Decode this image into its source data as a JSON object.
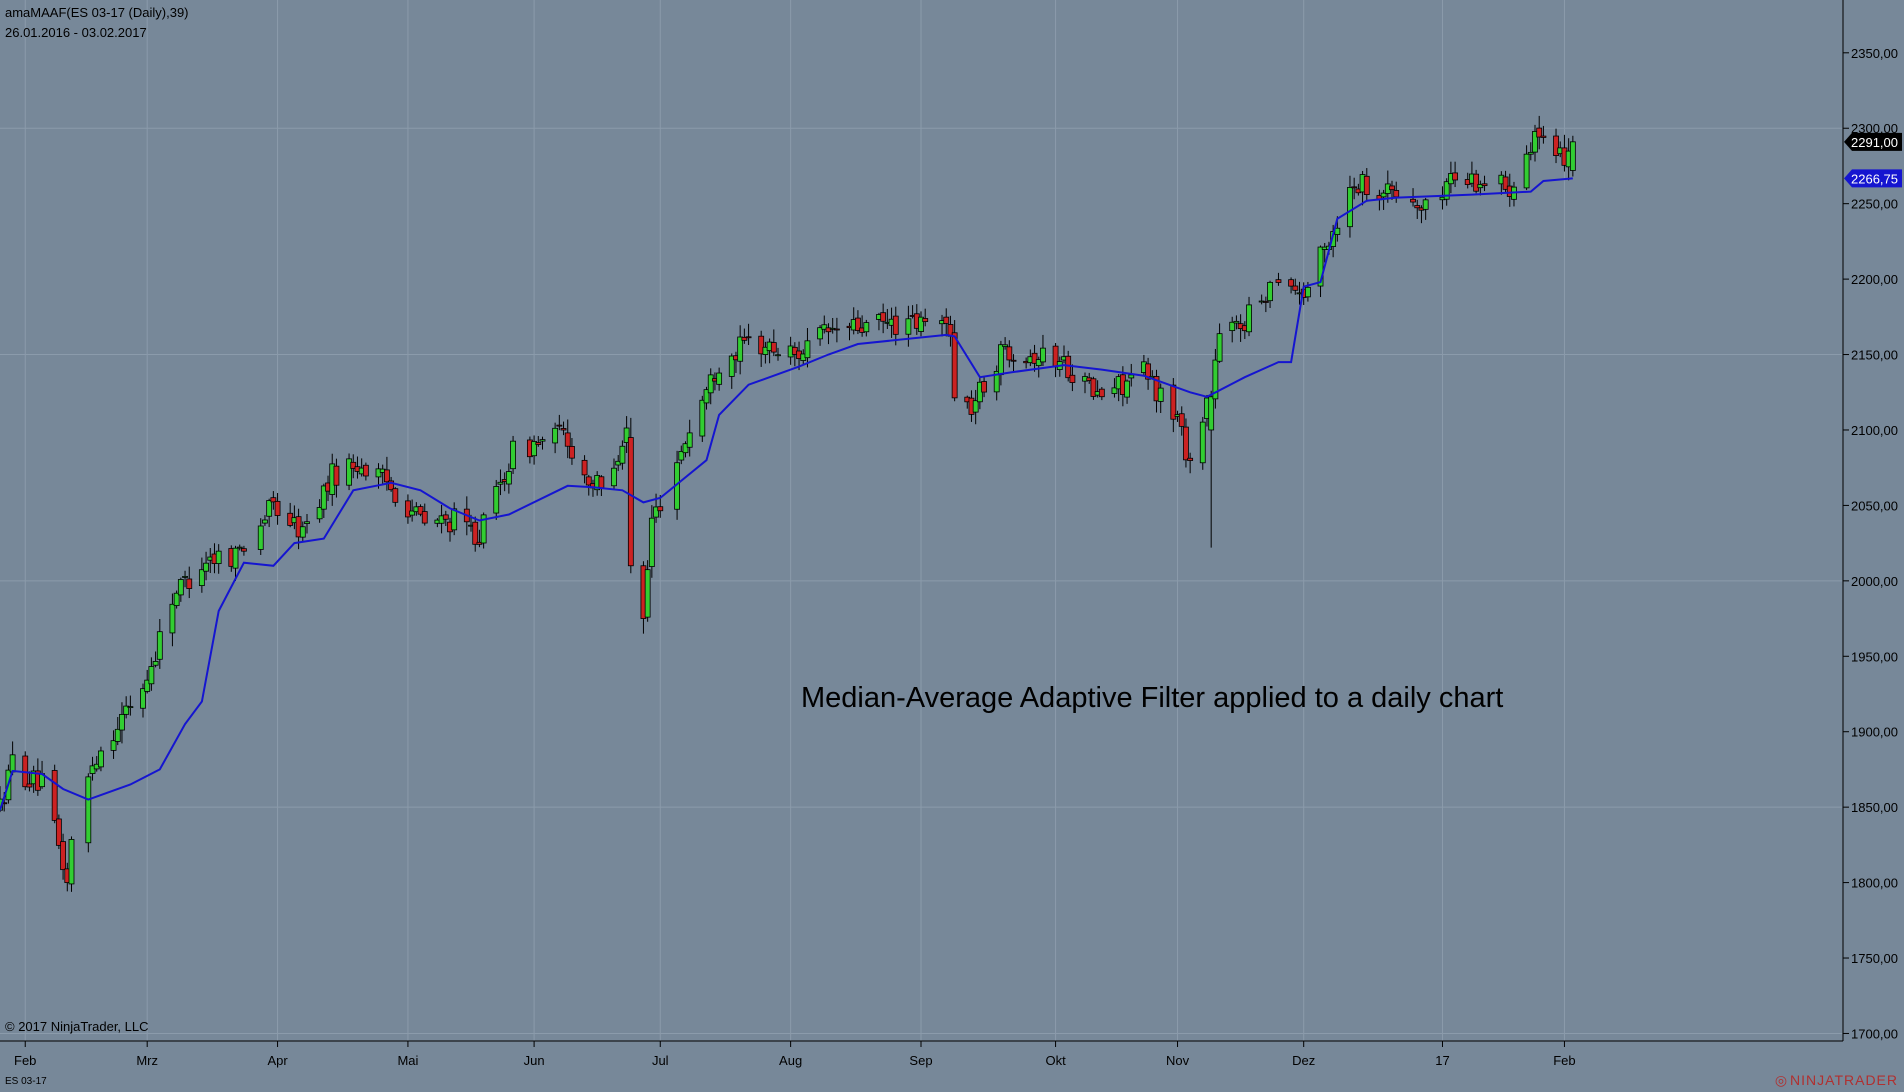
{
  "header": {
    "title": "amaMAAF(ES 03-17 (Daily),39)",
    "date_range": "26.01.2016 - 03.02.2017"
  },
  "copyright": "© 2017 NinjaTrader, LLC",
  "annotation": "Median-Average Adaptive Filter applied to a daily chart",
  "instrument_tab": "ES 03-17",
  "brand": {
    "mark": "◎",
    "name": "NINJATRADER"
  },
  "colors": {
    "background": "#778899",
    "grid": "#8b9bab",
    "up_candle": "#32cd32",
    "down_candle": "#cc2222",
    "wick": "#000000",
    "filter_line": "#1515d0",
    "last_price_tag": "#000000",
    "filter_tag": "#1515d0",
    "tag_text": "#ffffff"
  },
  "chart_data": {
    "type": "candlestick",
    "instrument": "ES 03-17 (Daily)",
    "y_axis": {
      "ylim": [
        1695,
        2385
      ],
      "ticks": [
        1700,
        1750,
        1800,
        1850,
        1900,
        1950,
        2000,
        2050,
        2100,
        2150,
        2200,
        2250,
        2300,
        2350
      ],
      "tick_labels": [
        "1700,00",
        "1750,00",
        "1800,00",
        "1850,00",
        "1900,00",
        "1950,00",
        "2000,00",
        "2050,00",
        "2100,00",
        "2150,00",
        "2200,00",
        "2250,00",
        "2300,00",
        "2350,00"
      ],
      "position": "right"
    },
    "x_axis": {
      "xlim": [
        "2016-01-26",
        "2017-04-08"
      ],
      "months": [
        {
          "label": "Feb",
          "date": "2016-02-01"
        },
        {
          "label": "Mrz",
          "date": "2016-03-01"
        },
        {
          "label": "Apr",
          "date": "2016-04-01"
        },
        {
          "label": "Mai",
          "date": "2016-05-02"
        },
        {
          "label": "Jun",
          "date": "2016-06-01"
        },
        {
          "label": "Jul",
          "date": "2016-07-01"
        },
        {
          "label": "Aug",
          "date": "2016-08-01"
        },
        {
          "label": "Sep",
          "date": "2016-09-01"
        },
        {
          "label": "Okt",
          "date": "2016-10-03"
        },
        {
          "label": "Nov",
          "date": "2016-11-01"
        },
        {
          "label": "Dez",
          "date": "2016-12-01"
        },
        {
          "label": "17",
          "date": "2017-01-03"
        },
        {
          "label": "Feb",
          "date": "2017-02-01"
        }
      ]
    },
    "grid": {
      "horizontal_values": [
        1700,
        1850,
        2000,
        2150,
        2300
      ],
      "vertical": "at month labels"
    },
    "last_price": {
      "value": 2291.0,
      "label": "2291,00"
    },
    "filter_value": {
      "value": 2266.75,
      "label": "2266,75"
    },
    "anchors": [
      [
        "2016-01-26",
        1850
      ],
      [
        "2016-01-29",
        1880
      ],
      [
        "2016-02-02",
        1868
      ],
      [
        "2016-02-05",
        1865
      ],
      [
        "2016-02-08",
        1835
      ],
      [
        "2016-02-11",
        1800
      ],
      [
        "2016-02-12",
        1825
      ],
      [
        "2016-02-17",
        1880
      ],
      [
        "2016-02-23",
        1905
      ],
      [
        "2016-03-01",
        1935
      ],
      [
        "2016-03-07",
        1990
      ],
      [
        "2016-03-15",
        2015
      ],
      [
        "2016-03-22",
        2018
      ],
      [
        "2016-03-31",
        2050
      ],
      [
        "2016-04-07",
        2032
      ],
      [
        "2016-04-14",
        2070
      ],
      [
        "2016-04-20",
        2078
      ],
      [
        "2016-04-27",
        2065
      ],
      [
        "2016-05-06",
        2038
      ],
      [
        "2016-05-13",
        2040
      ],
      [
        "2016-05-19",
        2030
      ],
      [
        "2016-05-27",
        2085
      ],
      [
        "2016-06-08",
        2098
      ],
      [
        "2016-06-13",
        2070
      ],
      [
        "2016-06-17",
        2060
      ],
      [
        "2016-06-23",
        2100
      ],
      [
        "2016-06-24",
        2010
      ],
      [
        "2016-06-27",
        1975
      ],
      [
        "2016-06-29",
        2040
      ],
      [
        "2016-07-05",
        2080
      ],
      [
        "2016-07-11",
        2120
      ],
      [
        "2016-07-15",
        2145
      ],
      [
        "2016-07-22",
        2158
      ],
      [
        "2016-08-02",
        2150
      ],
      [
        "2016-08-10",
        2165
      ],
      [
        "2016-08-23",
        2170
      ],
      [
        "2016-09-08",
        2170
      ],
      [
        "2016-09-09",
        2120
      ],
      [
        "2016-09-13",
        2115
      ],
      [
        "2016-09-21",
        2155
      ],
      [
        "2016-10-05",
        2145
      ],
      [
        "2016-10-13",
        2122
      ],
      [
        "2016-10-24",
        2138
      ],
      [
        "2016-11-01",
        2108
      ],
      [
        "2016-11-04",
        2078
      ],
      [
        "2016-11-08",
        2120
      ],
      [
        "2016-11-11",
        2160
      ],
      [
        "2016-11-18",
        2175
      ],
      [
        "2016-11-25",
        2205
      ],
      [
        "2016-12-01",
        2190
      ],
      [
        "2016-12-06",
        2220
      ],
      [
        "2016-12-13",
        2265
      ],
      [
        "2016-12-22",
        2258
      ],
      [
        "2016-12-30",
        2245
      ],
      [
        "2017-01-05",
        2268
      ],
      [
        "2017-01-13",
        2265
      ],
      [
        "2017-01-19",
        2262
      ],
      [
        "2017-01-25",
        2298
      ],
      [
        "2017-01-30",
        2275
      ],
      [
        "2017-02-03",
        2291
      ]
    ],
    "special_bars": [
      {
        "date": "2016-06-24",
        "open": 2095,
        "close": 2010,
        "high": 2108,
        "low": 2005
      },
      {
        "date": "2016-06-27",
        "open": 2010,
        "close": 1975,
        "high": 2013,
        "low": 1965
      },
      {
        "date": "2016-11-09",
        "open": 2100,
        "close": 2122,
        "high": 2126,
        "low": 2022
      },
      {
        "date": "2017-02-03",
        "open": 2272,
        "close": 2291,
        "high": 2295,
        "low": 2268
      }
    ],
    "filter_line": [
      [
        "2016-01-26",
        1848
      ],
      [
        "2016-01-29",
        1874
      ],
      [
        "2016-02-05",
        1872
      ],
      [
        "2016-02-10",
        1862
      ],
      [
        "2016-02-16",
        1855
      ],
      [
        "2016-02-26",
        1865
      ],
      [
        "2016-03-04",
        1875
      ],
      [
        "2016-03-10",
        1905
      ],
      [
        "2016-03-14",
        1920
      ],
      [
        "2016-03-18",
        1980
      ],
      [
        "2016-03-24",
        2012
      ],
      [
        "2016-03-31",
        2010
      ],
      [
        "2016-04-05",
        2025
      ],
      [
        "2016-04-12",
        2028
      ],
      [
        "2016-04-19",
        2060
      ],
      [
        "2016-04-28",
        2065
      ],
      [
        "2016-05-05",
        2060
      ],
      [
        "2016-05-12",
        2048
      ],
      [
        "2016-05-19",
        2040
      ],
      [
        "2016-05-26",
        2044
      ],
      [
        "2016-06-09",
        2063
      ],
      [
        "2016-06-15",
        2062
      ],
      [
        "2016-06-22",
        2060
      ],
      [
        "2016-06-27",
        2052
      ],
      [
        "2016-07-01",
        2055
      ],
      [
        "2016-07-12",
        2080
      ],
      [
        "2016-07-15",
        2110
      ],
      [
        "2016-07-22",
        2130
      ],
      [
        "2016-08-03",
        2142
      ],
      [
        "2016-08-10",
        2150
      ],
      [
        "2016-08-17",
        2157
      ],
      [
        "2016-09-07",
        2163
      ],
      [
        "2016-09-09",
        2162
      ],
      [
        "2016-09-15",
        2135
      ],
      [
        "2016-09-22",
        2138
      ],
      [
        "2016-10-05",
        2143
      ],
      [
        "2016-10-14",
        2140
      ],
      [
        "2016-10-24",
        2136
      ],
      [
        "2016-11-04",
        2125
      ],
      [
        "2016-11-08",
        2122
      ],
      [
        "2016-11-17",
        2135
      ],
      [
        "2016-11-25",
        2145
      ],
      [
        "2016-11-28",
        2145
      ],
      [
        "2016-12-01",
        2195
      ],
      [
        "2016-12-05",
        2198
      ],
      [
        "2016-12-09",
        2240
      ],
      [
        "2016-12-16",
        2252
      ],
      [
        "2016-12-23",
        2254
      ],
      [
        "2017-01-10",
        2256
      ],
      [
        "2017-01-24",
        2258
      ],
      [
        "2017-01-27",
        2265
      ],
      [
        "2017-02-03",
        2266.75
      ]
    ]
  }
}
